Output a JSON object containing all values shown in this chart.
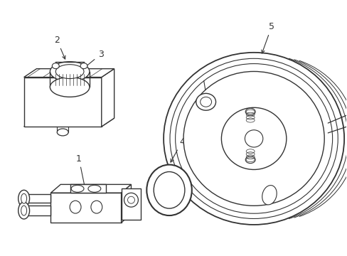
{
  "bg_color": "#ffffff",
  "line_color": "#333333",
  "line_width": 1.0,
  "fig_width": 4.89,
  "fig_height": 3.6,
  "dpi": 100,
  "font_size": 9
}
